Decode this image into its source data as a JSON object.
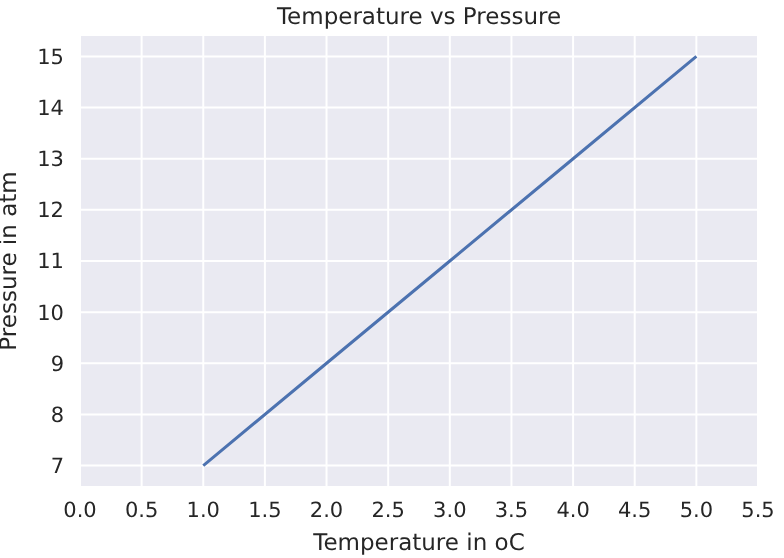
{
  "chart_data": {
    "type": "line",
    "title": "Temperature vs Pressure",
    "xlabel": "Temperature in oC",
    "ylabel": "Pressure in atm",
    "x": [
      1,
      2,
      3,
      4,
      5
    ],
    "series": [
      {
        "color": "#4c72b0",
        "values": [
          7,
          9,
          11,
          13,
          15
        ]
      }
    ],
    "xlim": [
      0,
      5.5
    ],
    "xticks": [
      {
        "value": 0,
        "label": "0.0"
      },
      {
        "value": 0.5,
        "label": "0.5"
      },
      {
        "value": 1,
        "label": "1.0"
      },
      {
        "value": 1.5,
        "label": "1.5"
      },
      {
        "value": 2,
        "label": "2.0"
      },
      {
        "value": 2.5,
        "label": "2.5"
      },
      {
        "value": 3,
        "label": "3.0"
      },
      {
        "value": 3.5,
        "label": "3.5"
      },
      {
        "value": 4,
        "label": "4.0"
      },
      {
        "value": 4.5,
        "label": "4.5"
      },
      {
        "value": 5,
        "label": "5.0"
      },
      {
        "value": 5.5,
        "label": "5.5"
      }
    ],
    "ylim": [
      6.6,
      15.4
    ],
    "yticks": [
      7,
      8,
      9,
      10,
      11,
      12,
      13,
      14,
      15
    ],
    "grid": true,
    "legend": false,
    "marker": "none",
    "line_style": "solid"
  }
}
